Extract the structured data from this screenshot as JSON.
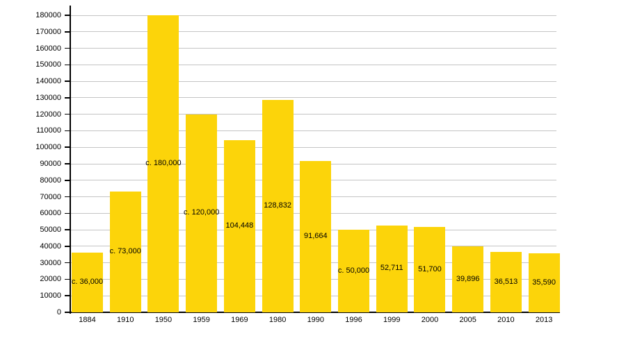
{
  "page": {
    "background_color": "#FFFFFF"
  },
  "chart_data": {
    "type": "bar",
    "title": "",
    "xlabel": "",
    "ylabel": "",
    "categories": [
      "1884",
      "1910",
      "1950",
      "1959",
      "1969",
      "1980",
      "1990",
      "1996",
      "1999",
      "2000",
      "2005",
      "2010",
      "2013"
    ],
    "values": [
      36000,
      73000,
      180000,
      120000,
      104448,
      128832,
      91664,
      50000,
      52711,
      51700,
      39896,
      36513,
      35590
    ],
    "bar_labels": [
      "c. 36,000",
      "c. 73,000",
      "c. 180,000",
      "c. 120,000",
      "104,448",
      "128,832",
      "91,664",
      "c. 50,000",
      "52,711",
      "51,700",
      "39,896",
      "36,513",
      "35,590"
    ],
    "ylim": [
      0,
      180000
    ],
    "y_ticks": [
      0,
      10000,
      20000,
      30000,
      40000,
      50000,
      60000,
      70000,
      80000,
      90000,
      100000,
      110000,
      120000,
      130000,
      140000,
      150000,
      160000,
      170000,
      180000
    ],
    "grid": true,
    "legend": false,
    "legend_position": "none",
    "bar_color": "#FCD40A",
    "gridline_color": "#C4C4C4",
    "axis_color": "#000000",
    "label_color": "#000000"
  }
}
